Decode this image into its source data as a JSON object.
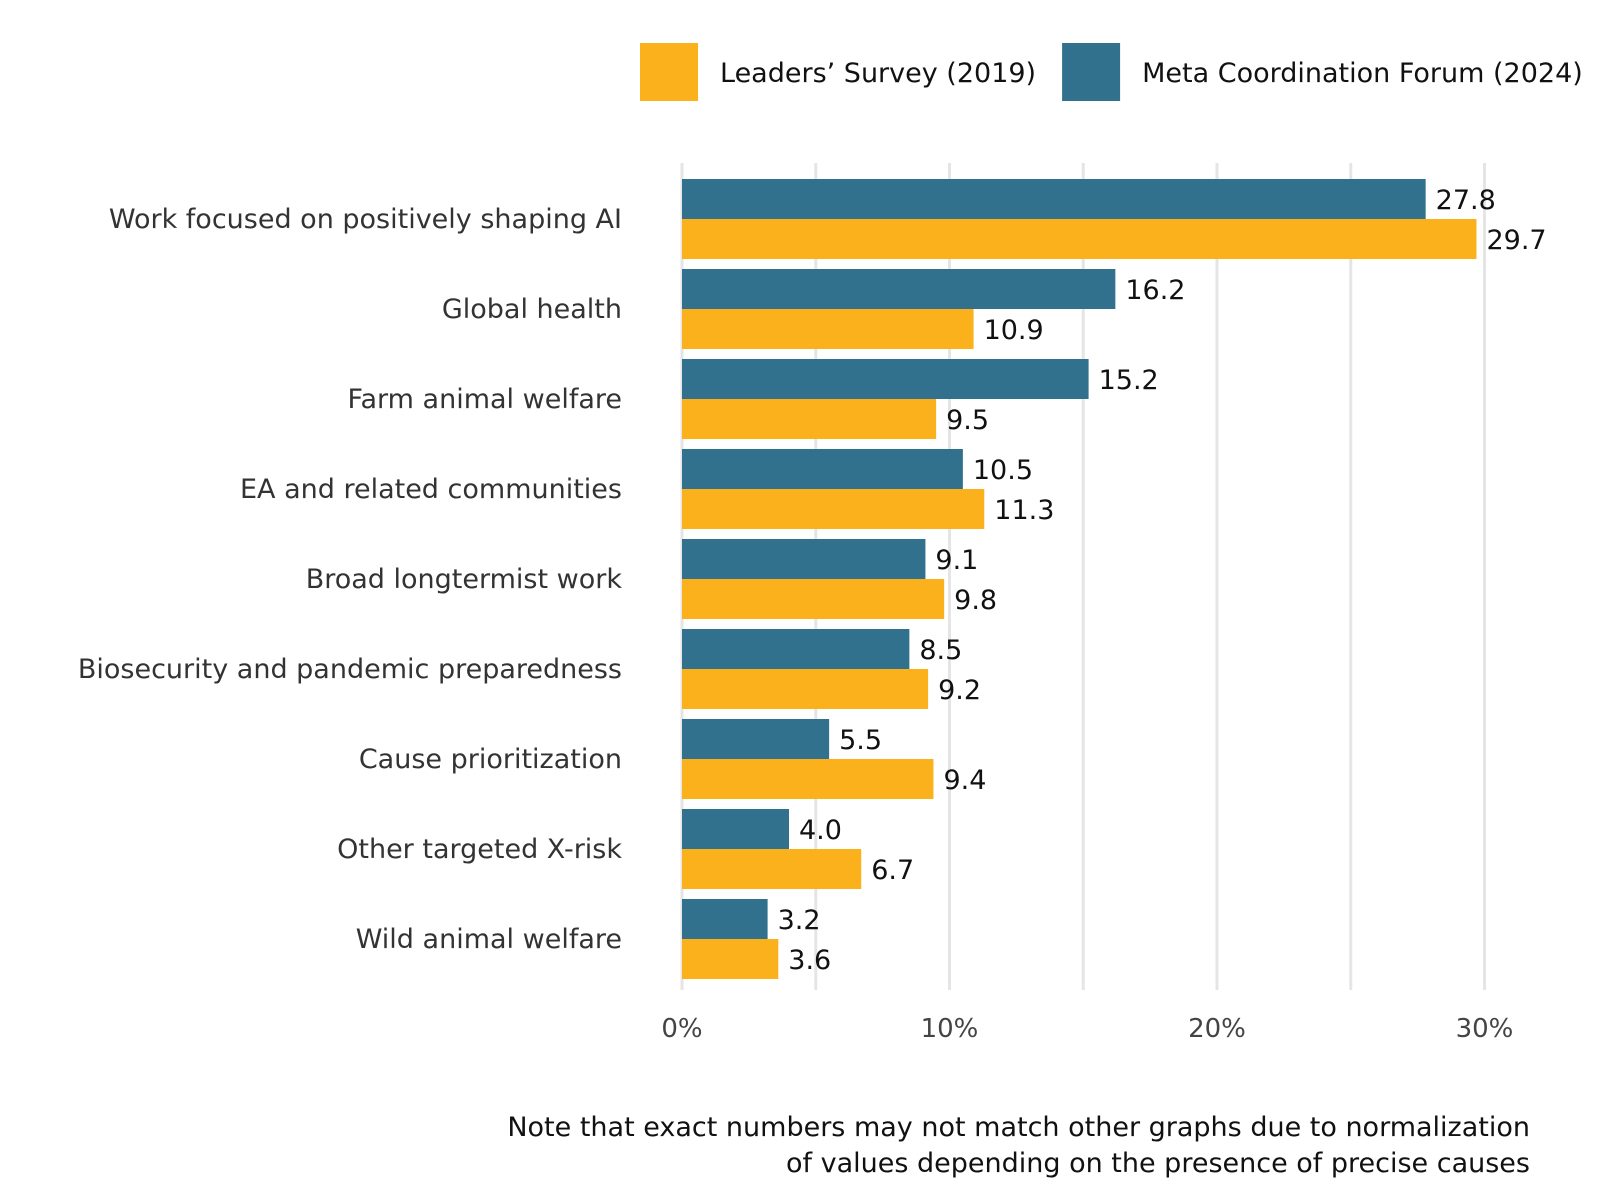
{
  "chart_data": {
    "type": "bar",
    "orientation": "horizontal",
    "categories": [
      "Work focused on positively shaping AI",
      "Global health",
      "Farm animal welfare",
      "EA and related communities",
      "Broad longtermist work",
      "Biosecurity and pandemic preparedness",
      "Cause prioritization",
      "Other targeted X-risk",
      "Wild animal welfare"
    ],
    "series": [
      {
        "name": "Meta Coordination Forum (2024)",
        "values": [
          27.8,
          16.2,
          15.2,
          10.5,
          9.1,
          8.5,
          5.5,
          4.0,
          3.2
        ],
        "labels": [
          "27.8",
          "16.2",
          "15.2",
          "10.5",
          "9.1",
          "8.5",
          "5.5",
          "4.0",
          "3.2"
        ]
      },
      {
        "name": "Leaders’ Survey (2019)",
        "values": [
          29.7,
          10.9,
          9.5,
          11.3,
          9.8,
          9.2,
          9.4,
          6.7,
          3.6
        ],
        "labels": [
          "29.7",
          "10.9",
          "9.5",
          "11.3",
          "9.8",
          "9.2",
          "9.4",
          "6.7",
          "3.6"
        ]
      }
    ],
    "legend": {
      "position": "top-right",
      "items": [
        {
          "label": "Leaders’ Survey (2019)",
          "series": 1
        },
        {
          "label": "Meta Coordination Forum (2024)",
          "series": 0
        }
      ]
    },
    "x_ticks": [
      0,
      10,
      20,
      30
    ],
    "x_tick_labels": [
      "0%",
      "10%",
      "20%",
      "30%"
    ],
    "xlim": [
      0,
      34
    ],
    "minor_grid_step": 5,
    "title": "",
    "xlabel": "",
    "ylabel": ""
  },
  "colors": {
    "leaders_2019": "#FBB11C",
    "meta_2024": "#31718E",
    "grid": "#E5E5E5",
    "text": "#333333"
  },
  "note": {
    "line1": "Note that exact numbers may not match other graphs due to normalization",
    "line2": "of values depending on the presence of precise causes"
  }
}
